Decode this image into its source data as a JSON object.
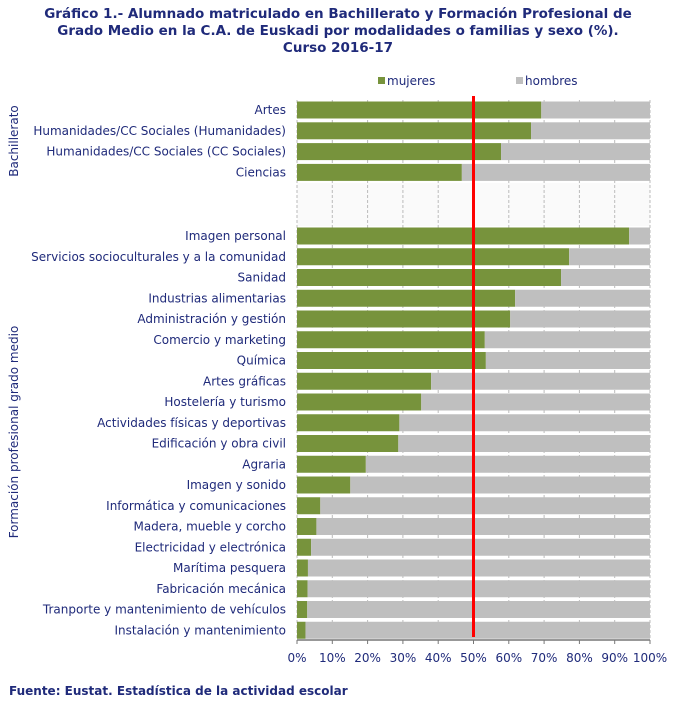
{
  "chart_data": {
    "type": "bar",
    "orientation": "horizontal",
    "stacked": "100%",
    "title": "Gráfico 1.- Alumnado matriculado en Bachillerato y Formación Profesional de Grado Medio en la C.A. de Euskadi por modalidades o familias y sexo (%). Curso 2016-17",
    "title_lines": [
      "Gráfico 1.- Alumnado matriculado en Bachillerato y Formación Profesional de",
      "Grado Medio en la C.A. de Euskadi por modalidades o familias y sexo (%).",
      "Curso 2016-17"
    ],
    "source": "Fuente: Eustat. Estadística de la actividad escolar",
    "legend_position": "top",
    "xlim": [
      0,
      100
    ],
    "xticks": [
      "0%",
      "10%",
      "20%",
      "30%",
      "40%",
      "50%",
      "60%",
      "70%",
      "80%",
      "90%",
      "100%"
    ],
    "grid": true,
    "reference_line": {
      "value": 50,
      "color": "#ff0000"
    },
    "groups": [
      {
        "label": "Bachillerato",
        "categories": [
          "Artes",
          "Humanidades/CC Sociales (Humanidades)",
          "Humanidades/CC Sociales (CC Sociales)",
          "Ciencias"
        ]
      },
      {
        "label": "Formación profesional grado medio",
        "categories": [
          "Imagen personal",
          "Servicios socioculturales y a la comunidad",
          "Sanidad",
          "Industrias alimentarias",
          "Administración y gestión",
          "Comercio y marketing",
          "Química",
          "Artes gráficas",
          "Hostelería y turismo",
          "Actividades físicas y deportivas",
          "Edificación y obra civil",
          "Agraria",
          "Imagen y sonido",
          "Informática y comunicaciones",
          "Madera, mueble y corcho",
          "Electricidad y electrónica",
          "Marítima pesquera",
          "Fabricación mecánica",
          "Tranporte y mantenimiento de vehículos",
          "Instalación y mantenimiento"
        ]
      }
    ],
    "series": [
      {
        "name": "mujeres",
        "color": "#77933c",
        "values": [
          69.2,
          66.3,
          57.8,
          46.7,
          94.1,
          77.1,
          74.8,
          61.8,
          60.4,
          53.2,
          53.5,
          38.0,
          35.2,
          29.0,
          28.7,
          19.5,
          15.1,
          6.6,
          5.5,
          4.0,
          3.1,
          3.0,
          2.9,
          2.4
        ]
      },
      {
        "name": "hombres",
        "color": "#bfbfbf",
        "values": [
          30.8,
          33.7,
          42.2,
          53.3,
          5.9,
          22.9,
          25.2,
          38.2,
          39.6,
          46.8,
          46.5,
          62.0,
          64.8,
          71.0,
          71.3,
          80.5,
          84.9,
          93.4,
          94.5,
          96.0,
          96.9,
          97.0,
          97.1,
          97.6
        ]
      }
    ]
  }
}
